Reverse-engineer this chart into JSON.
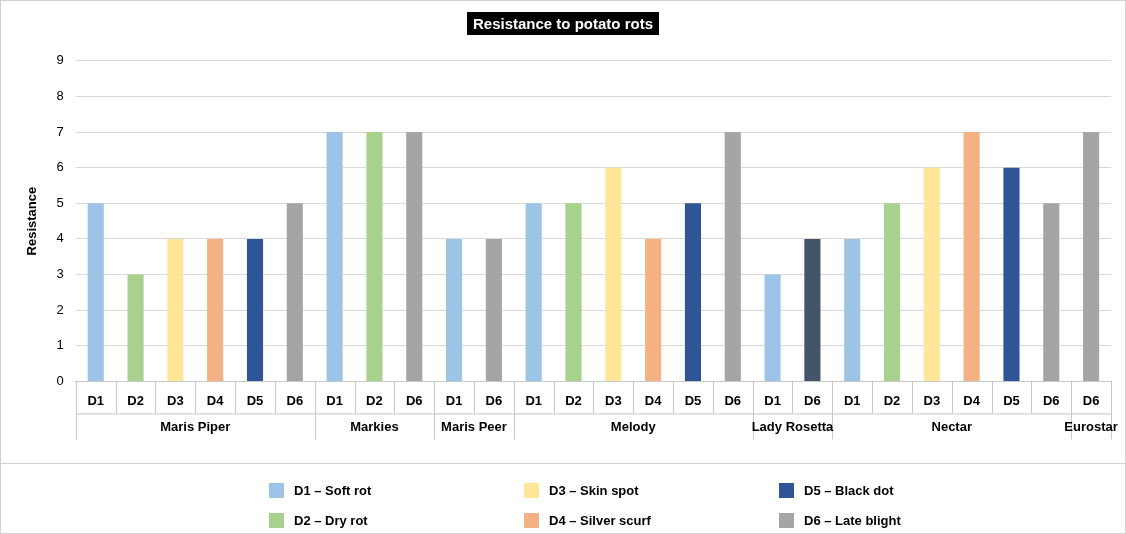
{
  "chart_data": {
    "type": "bar",
    "title": "Resistance to potato rots",
    "ylabel": "Resistance",
    "categories": [
      "D1",
      "D2",
      "D3",
      "D4",
      "D5",
      "D6",
      "D1",
      "D2",
      "D6",
      "D1",
      "D6",
      "D1",
      "D2",
      "D3",
      "D4",
      "D5",
      "D6",
      "D1",
      "D6",
      "D1",
      "D2",
      "D3",
      "D4",
      "D5",
      "D6",
      "D6"
    ],
    "annotations": [
      "Maris Piper",
      "Markies",
      "Maris Peer",
      "Melody",
      "Lady Rosetta",
      "Nectar",
      "Eurostar"
    ],
    "series": [
      {
        "name": "D1 – Soft rot",
        "color": "#9dc3e6",
        "values": [
          5,
          null,
          null,
          null,
          null,
          null,
          7,
          null,
          null,
          4,
          null,
          5,
          null,
          null,
          null,
          null,
          null,
          3,
          null,
          4,
          null,
          null,
          null,
          null,
          null,
          null
        ]
      },
      {
        "name": "D2 – Dry rot",
        "color": "#a9d18e",
        "values": [
          null,
          3,
          null,
          null,
          null,
          null,
          null,
          7,
          null,
          null,
          null,
          null,
          5,
          null,
          null,
          null,
          null,
          null,
          null,
          null,
          5,
          null,
          null,
          null,
          null,
          null
        ]
      },
      {
        "name": "D3 – Skin spot",
        "color": "#ffe699",
        "values": [
          null,
          null,
          4,
          null,
          null,
          null,
          null,
          null,
          null,
          null,
          null,
          null,
          null,
          6,
          null,
          null,
          null,
          null,
          null,
          null,
          null,
          6,
          null,
          null,
          null,
          null
        ]
      },
      {
        "name": "D4 – Silver scurf",
        "color": "#f4b183",
        "values": [
          null,
          null,
          null,
          4,
          null,
          null,
          null,
          null,
          null,
          null,
          null,
          null,
          null,
          null,
          4,
          null,
          null,
          null,
          null,
          null,
          null,
          null,
          7,
          null,
          null,
          null
        ]
      },
      {
        "name": "D5 – Black dot",
        "color": "#2f5597",
        "values": [
          null,
          null,
          null,
          null,
          4,
          null,
          null,
          null,
          null,
          null,
          null,
          null,
          null,
          null,
          null,
          5,
          null,
          null,
          null,
          null,
          null,
          null,
          null,
          6,
          null,
          null
        ]
      },
      {
        "name": "D6 – Late blight",
        "color": "#a5a5a5",
        "colors": [
          "#a5a5a5",
          "#a5a5a5",
          "#a5a5a5",
          "#a5a5a5",
          "#a5a5a5",
          "#a5a5a5",
          "#a5a5a5",
          "#a5a5a5",
          "#a5a5a5",
          "#a5a5a5",
          "#a5a5a5",
          "#a5a5a5",
          "#a5a5a5",
          "#a5a5a5",
          "#a5a5a5",
          "#a5a5a5",
          "#a5a5a5",
          "#a5a5a5",
          "#44546a",
          "#a5a5a5",
          "#a5a5a5",
          "#a5a5a5",
          "#a5a5a5",
          "#a5a5a5",
          "#a5a5a5",
          "#a5a5a5"
        ],
        "values": [
          null,
          null,
          null,
          null,
          null,
          5,
          null,
          null,
          7,
          null,
          4,
          null,
          null,
          null,
          null,
          null,
          7,
          null,
          4,
          null,
          null,
          null,
          null,
          null,
          5,
          7
        ]
      }
    ],
    "ylim": [
      0,
      9
    ],
    "yticks": [
      0,
      1,
      2,
      3,
      4,
      5,
      6,
      7,
      8,
      9
    ],
    "grid": "y",
    "legend": "bottom"
  }
}
